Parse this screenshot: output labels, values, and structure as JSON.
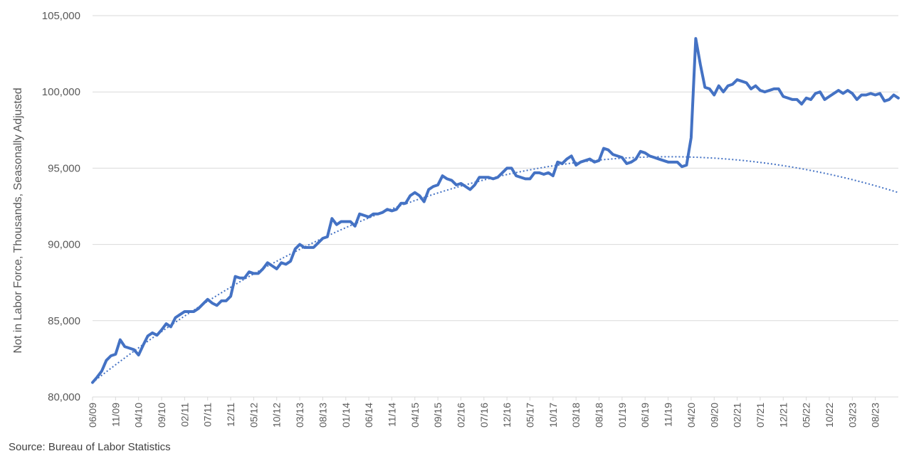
{
  "chart_data": {
    "type": "line",
    "title": "",
    "xlabel": "",
    "ylabel": "Not in Labor Force, Thousands, Seasonally Adjusted",
    "ylim": [
      80000,
      105000
    ],
    "y_ticks": [
      "80,000",
      "85,000",
      "90,000",
      "95,000",
      "100,000",
      "105,000"
    ],
    "y_tick_values": [
      80000,
      85000,
      90000,
      95000,
      100000,
      105000
    ],
    "x_tick_labels": [
      "06/09",
      "11/09",
      "04/10",
      "09/10",
      "02/11",
      "07/11",
      "12/11",
      "05/12",
      "10/12",
      "03/13",
      "08/13",
      "01/14",
      "06/14",
      "11/14",
      "04/15",
      "09/15",
      "02/16",
      "07/16",
      "12/16",
      "05/17",
      "10/17",
      "03/18",
      "08/18",
      "01/19",
      "06/19",
      "11/19",
      "04/20",
      "09/20",
      "02/21",
      "07/21",
      "12/21",
      "05/22",
      "10/22",
      "03/23",
      "08/23"
    ],
    "start_month": "06/09",
    "grid": true,
    "legend": "none",
    "colors": {
      "series": "#4472C4",
      "trend": "#4472C4",
      "grid": "#D9D9D9",
      "text": "#595959"
    },
    "series": [
      {
        "values": [
          80950,
          81300,
          81700,
          82400,
          82700,
          82800,
          83750,
          83300,
          83200,
          83100,
          82750,
          83400,
          84000,
          84200,
          84050,
          84400,
          84800,
          84600,
          85200,
          85400,
          85600,
          85600,
          85600,
          85800,
          86100,
          86400,
          86150,
          86000,
          86300,
          86300,
          86600,
          87900,
          87800,
          87800,
          88200,
          88100,
          88100,
          88400,
          88800,
          88600,
          88400,
          88800,
          88700,
          88900,
          89700,
          90000,
          89800,
          89800,
          89800,
          90100,
          90400,
          90500,
          91700,
          91300,
          91500,
          91500,
          91500,
          91200,
          92000,
          91900,
          91800,
          92000,
          92000,
          92100,
          92300,
          92200,
          92300,
          92700,
          92700,
          93200,
          93400,
          93200,
          92800,
          93600,
          93800,
          93900,
          94500,
          94300,
          94200,
          93900,
          94000,
          93800,
          93600,
          93900,
          94400,
          94400,
          94400,
          94300,
          94400,
          94700,
          95000,
          95000,
          94500,
          94400,
          94300,
          94300,
          94700,
          94700,
          94600,
          94700,
          94500,
          95400,
          95300,
          95600,
          95800,
          95200,
          95400,
          95500,
          95600,
          95400,
          95500,
          96300,
          96200,
          95900,
          95800,
          95700,
          95300,
          95400,
          95600,
          96100,
          96000,
          95800,
          95700,
          95600,
          95500,
          95400,
          95400,
          95400,
          95100,
          95200,
          97000,
          103500,
          101800,
          100300,
          100200,
          99800,
          100400,
          100000,
          100400,
          100500,
          100800,
          100700,
          100600,
          100200,
          100400,
          100100,
          100000,
          100100,
          100200,
          100200,
          99700,
          99600,
          99500,
          99500,
          99200,
          99600,
          99500,
          99900,
          100000,
          99500,
          99700,
          99900,
          100100,
          99900,
          100100,
          99900,
          99500,
          99800,
          99800,
          99900,
          99800,
          99900,
          99400,
          99500,
          99800,
          99600
        ]
      }
    ],
    "trendline": {
      "type": "polynomial",
      "start": 80950,
      "end": 93400,
      "peak_value": 95750,
      "peak_month": "11/19"
    }
  },
  "footer": {
    "source": "Source: Bureau of Labor Statistics"
  }
}
